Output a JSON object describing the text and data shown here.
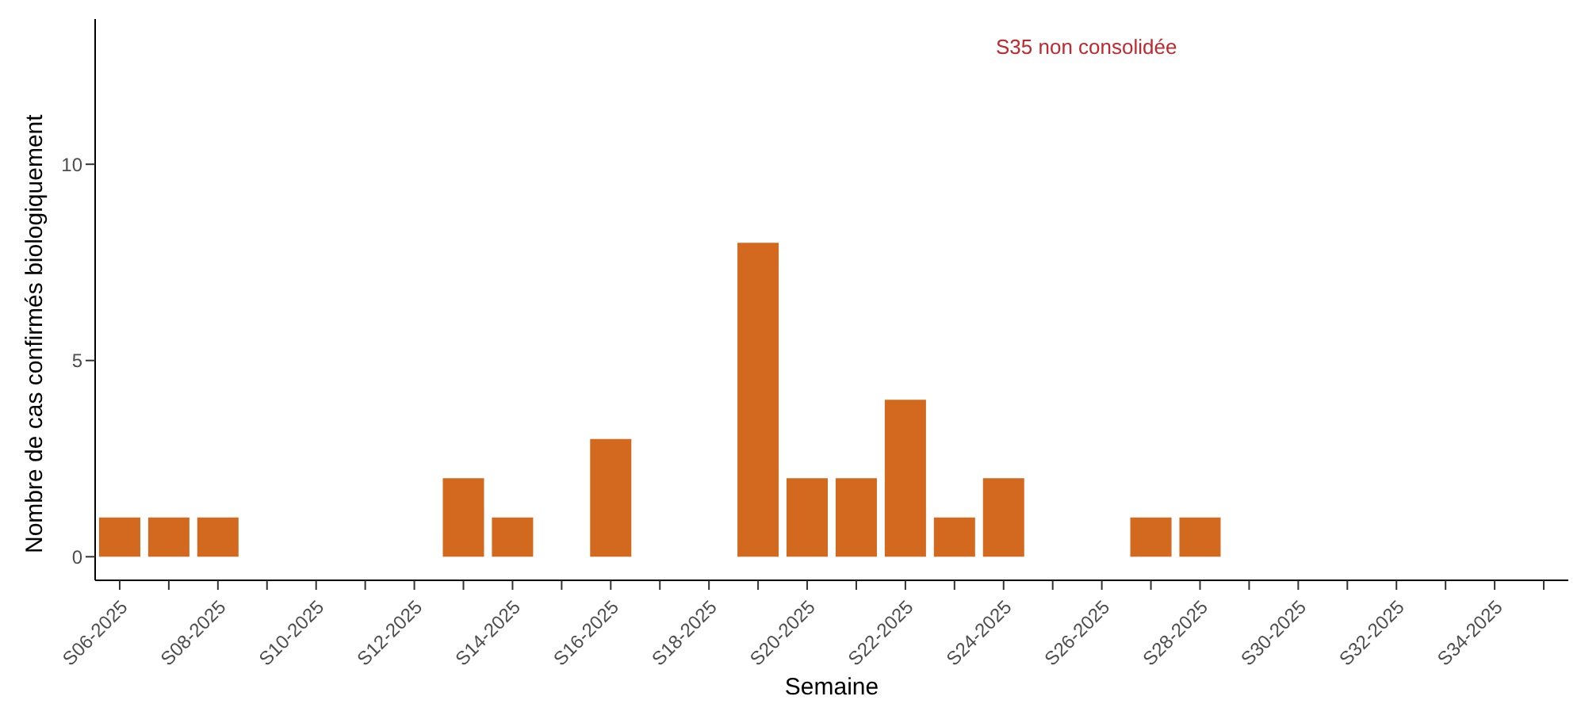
{
  "chart_data": {
    "type": "bar",
    "xlabel": "Semaine",
    "ylabel": "Nombre de cas confirmés biologiquement",
    "categories": [
      "S06-2025",
      null,
      "S08-2025",
      null,
      "S10-2025",
      null,
      "S12-2025",
      null,
      "S14-2025",
      null,
      "S16-2025",
      null,
      "S18-2025",
      null,
      "S20-2025",
      null,
      "S22-2025",
      null,
      "S24-2025",
      null,
      "S26-2025",
      null,
      "S28-2025",
      null,
      "S30-2025",
      null,
      "S32-2025",
      null,
      "S34-2025",
      null
    ],
    "values": [
      1,
      1,
      1,
      0,
      0,
      0,
      0,
      2,
      1,
      0,
      3,
      0,
      0,
      8,
      2,
      2,
      4,
      1,
      2,
      0,
      0,
      1,
      1,
      0,
      0,
      0,
      0,
      0,
      0,
      0
    ],
    "color": "#d2691e",
    "ylim": [
      -0.6,
      13.7
    ],
    "yticks": [
      0,
      5,
      10
    ],
    "annotations": [
      "S35 non consolidée"
    ]
  }
}
